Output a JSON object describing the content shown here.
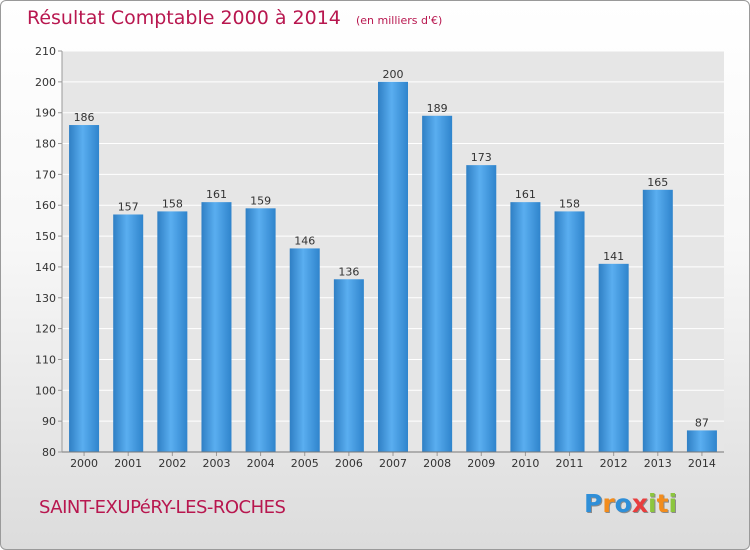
{
  "header": {
    "title": "Résultat Comptable 2000 à 2014",
    "subtitle": "(en milliers d'€)"
  },
  "footer": {
    "commune": "SAINT-EXUPéRY-LES-ROCHES",
    "logo_letters": [
      "P",
      "r",
      "o",
      "x",
      "i",
      "t",
      "i"
    ],
    "logo_colors": [
      "#2f8fd8",
      "#f28c1c",
      "#2f8fd8",
      "#e83e3e",
      "#8cc63e",
      "#f28c1c",
      "#8cc63e"
    ]
  },
  "chart_data": {
    "type": "bar",
    "title": "Résultat Comptable 2000 à 2014",
    "subtitle": "(en milliers d'€)",
    "categories": [
      "2000",
      "2001",
      "2002",
      "2003",
      "2004",
      "2005",
      "2006",
      "2007",
      "2008",
      "2009",
      "2010",
      "2011",
      "2012",
      "2013",
      "2014"
    ],
    "values": [
      186,
      157,
      158,
      161,
      159,
      146,
      136,
      200,
      189,
      173,
      161,
      158,
      141,
      165,
      87
    ],
    "ylim": [
      80,
      210
    ],
    "yticks": [
      80,
      90,
      100,
      110,
      120,
      130,
      140,
      150,
      160,
      170,
      180,
      190,
      200,
      210
    ],
    "grid": true,
    "bar_color": "#3d93d9",
    "legend": "none"
  }
}
